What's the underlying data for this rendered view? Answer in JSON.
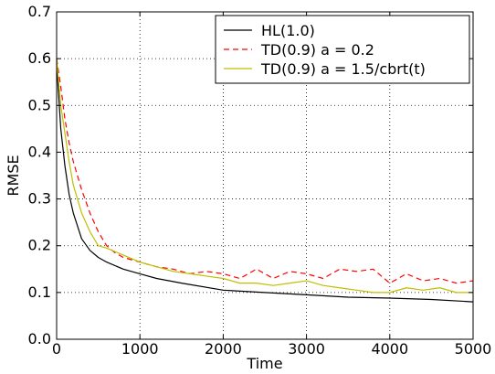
{
  "chart_data": {
    "type": "line",
    "title": "",
    "xlabel": "Time",
    "ylabel": "RMSE",
    "xlim": [
      0,
      5000
    ],
    "ylim": [
      0.0,
      0.7
    ],
    "xticks": [
      "0",
      "1000",
      "2000",
      "3000",
      "4000",
      "5000"
    ],
    "yticks": [
      "0.0",
      "0.1",
      "0.2",
      "0.3",
      "0.4",
      "0.5",
      "0.6",
      "0.7"
    ],
    "grid": true,
    "legend_position": "top-right",
    "series": [
      {
        "name": "HL(1.0)",
        "color": "#000000",
        "dash": "solid",
        "x": [
          0,
          50,
          100,
          150,
          200,
          300,
          400,
          500,
          600,
          800,
          1000,
          1200,
          1500,
          2000,
          2500,
          3000,
          3500,
          4000,
          4500,
          5000
        ],
        "y": [
          0.59,
          0.45,
          0.37,
          0.31,
          0.27,
          0.215,
          0.19,
          0.175,
          0.165,
          0.15,
          0.14,
          0.13,
          0.12,
          0.105,
          0.1,
          0.095,
          0.09,
          0.088,
          0.085,
          0.08
        ]
      },
      {
        "name": "TD(0.9) a = 0.2",
        "color": "#ff0000",
        "dash": "dashed",
        "x": [
          0,
          50,
          100,
          150,
          200,
          300,
          400,
          500,
          600,
          700,
          800,
          1000,
          1200,
          1400,
          1600,
          1800,
          2000,
          2200,
          2400,
          2600,
          2800,
          3000,
          3200,
          3400,
          3600,
          3800,
          4000,
          4200,
          4400,
          4600,
          4800,
          5000
        ],
        "y": [
          0.6,
          0.54,
          0.47,
          0.42,
          0.38,
          0.32,
          0.27,
          0.23,
          0.2,
          0.185,
          0.175,
          0.165,
          0.155,
          0.15,
          0.14,
          0.145,
          0.14,
          0.13,
          0.15,
          0.13,
          0.145,
          0.14,
          0.13,
          0.15,
          0.145,
          0.15,
          0.12,
          0.14,
          0.125,
          0.13,
          0.12,
          0.125
        ]
      },
      {
        "name": "TD(0.9) a = 1.5/cbrt(t)",
        "color": "#bfbf00",
        "dash": "solid",
        "x": [
          0,
          50,
          100,
          150,
          200,
          300,
          400,
          500,
          600,
          800,
          1000,
          1200,
          1400,
          1600,
          1800,
          2000,
          2200,
          2400,
          2600,
          2800,
          3000,
          3200,
          3400,
          3600,
          3800,
          4000,
          4200,
          4400,
          4600,
          4800,
          5000
        ],
        "y": [
          0.6,
          0.5,
          0.44,
          0.38,
          0.33,
          0.27,
          0.23,
          0.2,
          0.195,
          0.18,
          0.165,
          0.155,
          0.145,
          0.14,
          0.135,
          0.13,
          0.12,
          0.12,
          0.115,
          0.12,
          0.125,
          0.115,
          0.11,
          0.105,
          0.1,
          0.1,
          0.11,
          0.105,
          0.11,
          0.1,
          0.1
        ]
      }
    ]
  }
}
